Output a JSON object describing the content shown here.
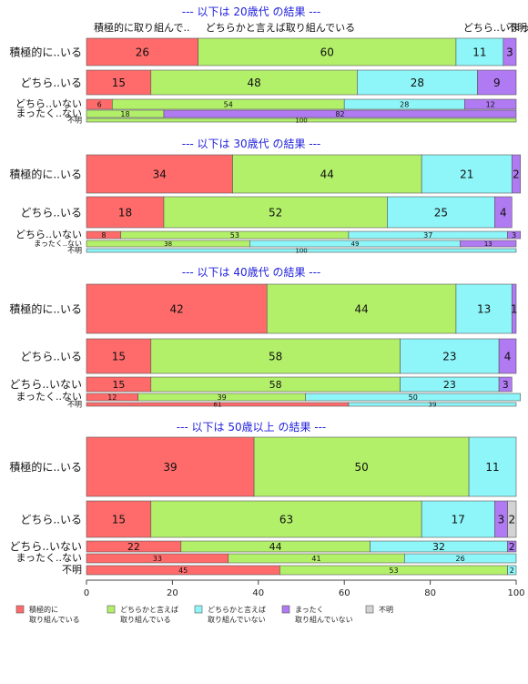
{
  "chart_data": {
    "type": "bar",
    "orientation": "horizontal-stacked-percent",
    "xlim": [
      0,
      100
    ],
    "x_ticks": [
      "0",
      "20",
      "40",
      "60",
      "80",
      "100"
    ],
    "colors": {
      "積極的に取り組んでいる": "#ff6b6b",
      "どちらかと言えば取り組んでいる": "#b3f06a",
      "どちらかと言えば取り組んでいない": "#8ef5f8",
      "まったく取り組んでいない": "#b07af2",
      "不明": "#d3d3d3"
    },
    "legend": [
      {
        "key": "積極的に取り組んでいる",
        "lines": [
          "積極的に",
          "取り組んでいる"
        ]
      },
      {
        "key": "どちらかと言えば取り組んでいる",
        "lines": [
          "どちらかと言えば",
          "取り組んでいる"
        ]
      },
      {
        "key": "どちらかと言えば取り組んでいない",
        "lines": [
          "どちらかと言えば",
          "取り組んでいない"
        ]
      },
      {
        "key": "まったく取り組んでいない",
        "lines": [
          "まったく",
          "取り組んでいない"
        ]
      },
      {
        "key": "不明",
        "lines": [
          "不明"
        ]
      }
    ],
    "panels": [
      {
        "title": "--- 以下は 20歳代 の結果 ---",
        "header_labels": [
          {
            "text": "積極的に取り組んで..",
            "at": 0
          },
          {
            "text": "どちらかと言えば取り組んでいる",
            "at": 26
          },
          {
            "text": "どちら..い",
            "at": 86
          },
          {
            "text": "まっ",
            "at": 97
          },
          {
            "text": "不明",
            "at": 100
          }
        ],
        "rows": [
          {
            "label": "積極的に..いる",
            "segments": [
              {
                "key": "積極的に取り組んでいる",
                "value": 26,
                "label": "26"
              },
              {
                "key": "どちらかと言えば取り組んでいる",
                "value": 60,
                "label": "60"
              },
              {
                "key": "どちらかと言えば取り組んでいない",
                "value": 11,
                "label": "11"
              },
              {
                "key": "まったく取り組んでいない",
                "value": 3,
                "label": "3"
              }
            ]
          },
          {
            "label": "どちら..いる",
            "segments": [
              {
                "key": "積極的に取り組んでいる",
                "value": 15,
                "label": "15"
              },
              {
                "key": "どちらかと言えば取り組んでいる",
                "value": 48,
                "label": "48"
              },
              {
                "key": "どちらかと言えば取り組んでいない",
                "value": 28,
                "label": "28"
              },
              {
                "key": "まったく取り組んでいない",
                "value": 9,
                "label": "9"
              }
            ]
          },
          {
            "label": "どちら..いない",
            "segments": [
              {
                "key": "積極的に取り組んでいる",
                "value": 6,
                "label": "6"
              },
              {
                "key": "どちらかと言えば取り組んでいる",
                "value": 54,
                "label": "54"
              },
              {
                "key": "どちらかと言えば取り組んでいない",
                "value": 28,
                "label": "28"
              },
              {
                "key": "まったく取り組んでいない",
                "value": 12,
                "label": "12"
              }
            ]
          },
          {
            "label": "まったく..ない",
            "segments": [
              {
                "key": "どちらかと言えば取り組んでいる",
                "value": 18,
                "label": "18"
              },
              {
                "key": "まったく取り組んでいない",
                "value": 82,
                "label": "82"
              }
            ]
          },
          {
            "label": "不明",
            "segments": [
              {
                "key": "どちらかと言えば取り組んでいる",
                "value": 100,
                "label": "100"
              }
            ]
          }
        ]
      },
      {
        "title": "--- 以下は 30歳代 の結果 ---",
        "header_labels": [],
        "rows": [
          {
            "label": "積極的に..いる",
            "segments": [
              {
                "key": "積極的に取り組んでいる",
                "value": 34,
                "label": "34"
              },
              {
                "key": "どちらかと言えば取り組んでいる",
                "value": 44,
                "label": "44"
              },
              {
                "key": "どちらかと言えば取り組んでいない",
                "value": 21,
                "label": "21"
              },
              {
                "key": "まったく取り組んでいない",
                "value": 2,
                "label": "2"
              }
            ]
          },
          {
            "label": "どちら..いる",
            "segments": [
              {
                "key": "積極的に取り組んでいる",
                "value": 18,
                "label": "18"
              },
              {
                "key": "どちらかと言えば取り組んでいる",
                "value": 52,
                "label": "52"
              },
              {
                "key": "どちらかと言えば取り組んでいない",
                "value": 25,
                "label": "25"
              },
              {
                "key": "まったく取り組んでいない",
                "value": 4,
                "label": "4"
              }
            ]
          },
          {
            "label": "どちら..いない",
            "segments": [
              {
                "key": "積極的に取り組んでいる",
                "value": 8,
                "label": "8"
              },
              {
                "key": "どちらかと言えば取り組んでいる",
                "value": 53,
                "label": "53"
              },
              {
                "key": "どちらかと言えば取り組んでいない",
                "value": 37,
                "label": "37"
              },
              {
                "key": "まったく取り組んでいない",
                "value": 3,
                "label": "3"
              }
            ]
          },
          {
            "label": "まったく..ない",
            "segments": [
              {
                "key": "どちらかと言えば取り組んでいる",
                "value": 38,
                "label": "38"
              },
              {
                "key": "どちらかと言えば取り組んでいない",
                "value": 49,
                "label": "49"
              },
              {
                "key": "まったく取り組んでいない",
                "value": 13,
                "label": "13"
              }
            ]
          },
          {
            "label": "不明",
            "segments": [
              {
                "key": "どちらかと言えば取り組んでいない",
                "value": 100,
                "label": "100"
              }
            ]
          }
        ]
      },
      {
        "title": "--- 以下は 40歳代 の結果 ---",
        "header_labels": [],
        "rows": [
          {
            "label": "積極的に..いる",
            "segments": [
              {
                "key": "積極的に取り組んでいる",
                "value": 42,
                "label": "42"
              },
              {
                "key": "どちらかと言えば取り組んでいる",
                "value": 44,
                "label": "44"
              },
              {
                "key": "どちらかと言えば取り組んでいない",
                "value": 13,
                "label": "13"
              },
              {
                "key": "まったく取り組んでいない",
                "value": 1,
                "label": "1"
              }
            ]
          },
          {
            "label": "どちら..いる",
            "segments": [
              {
                "key": "積極的に取り組んでいる",
                "value": 15,
                "label": "15"
              },
              {
                "key": "どちらかと言えば取り組んでいる",
                "value": 58,
                "label": "58"
              },
              {
                "key": "どちらかと言えば取り組んでいない",
                "value": 23,
                "label": "23"
              },
              {
                "key": "まったく取り組んでいない",
                "value": 4,
                "label": "4"
              }
            ]
          },
          {
            "label": "どちら..いない",
            "segments": [
              {
                "key": "積極的に取り組んでいる",
                "value": 15,
                "label": "15"
              },
              {
                "key": "どちらかと言えば取り組んでいる",
                "value": 58,
                "label": "58"
              },
              {
                "key": "どちらかと言えば取り組んでいない",
                "value": 23,
                "label": "23"
              },
              {
                "key": "まったく取り組んでいない",
                "value": 3,
                "label": "3"
              }
            ]
          },
          {
            "label": "まったく..ない",
            "segments": [
              {
                "key": "積極的に取り組んでいる",
                "value": 12,
                "label": "12"
              },
              {
                "key": "どちらかと言えば取り組んでいる",
                "value": 39,
                "label": "39"
              },
              {
                "key": "どちらかと言えば取り組んでいない",
                "value": 50,
                "label": "50"
              }
            ]
          },
          {
            "label": "不明",
            "segments": [
              {
                "key": "積極的に取り組んでいる",
                "value": 61,
                "label": "61"
              },
              {
                "key": "どちらかと言えば取り組んでいない",
                "value": 39,
                "label": "39"
              }
            ]
          }
        ]
      },
      {
        "title": "--- 以下は 50歳以上 の結果 ---",
        "header_labels": [],
        "rows": [
          {
            "label": "積極的に..いる",
            "segments": [
              {
                "key": "積極的に取り組んでいる",
                "value": 39,
                "label": "39"
              },
              {
                "key": "どちらかと言えば取り組んでいる",
                "value": 50,
                "label": "50"
              },
              {
                "key": "どちらかと言えば取り組んでいない",
                "value": 11,
                "label": "11"
              }
            ]
          },
          {
            "label": "どちら..いる",
            "segments": [
              {
                "key": "積極的に取り組んでいる",
                "value": 15,
                "label": "15"
              },
              {
                "key": "どちらかと言えば取り組んでいる",
                "value": 63,
                "label": "63"
              },
              {
                "key": "どちらかと言えば取り組んでいない",
                "value": 17,
                "label": "17"
              },
              {
                "key": "まったく取り組んでいない",
                "value": 3,
                "label": "3"
              },
              {
                "key": "不明",
                "value": 2,
                "label": "2"
              }
            ]
          },
          {
            "label": "どちら..いない",
            "segments": [
              {
                "key": "積極的に取り組んでいる",
                "value": 22,
                "label": "22"
              },
              {
                "key": "どちらかと言えば取り組んでいる",
                "value": 44,
                "label": "44"
              },
              {
                "key": "どちらかと言えば取り組んでいない",
                "value": 32,
                "label": "32"
              },
              {
                "key": "まったく取り組んでいない",
                "value": 2,
                "label": "2"
              }
            ]
          },
          {
            "label": "まったく..ない",
            "segments": [
              {
                "key": "積極的に取り組んでいる",
                "value": 33,
                "label": "33"
              },
              {
                "key": "どちらかと言えば取り組んでいる",
                "value": 41,
                "label": "41"
              },
              {
                "key": "どちらかと言えば取り組んでいない",
                "value": 26,
                "label": "26"
              }
            ]
          },
          {
            "label": "不明",
            "segments": [
              {
                "key": "積極的に取り組んでいる",
                "value": 45,
                "label": "45"
              },
              {
                "key": "どちらかと言えば取り組んでいる",
                "value": 53,
                "label": "53"
              },
              {
                "key": "どちらかと言えば取り組んでいない",
                "value": 2,
                "label": "2"
              }
            ]
          }
        ]
      }
    ]
  }
}
